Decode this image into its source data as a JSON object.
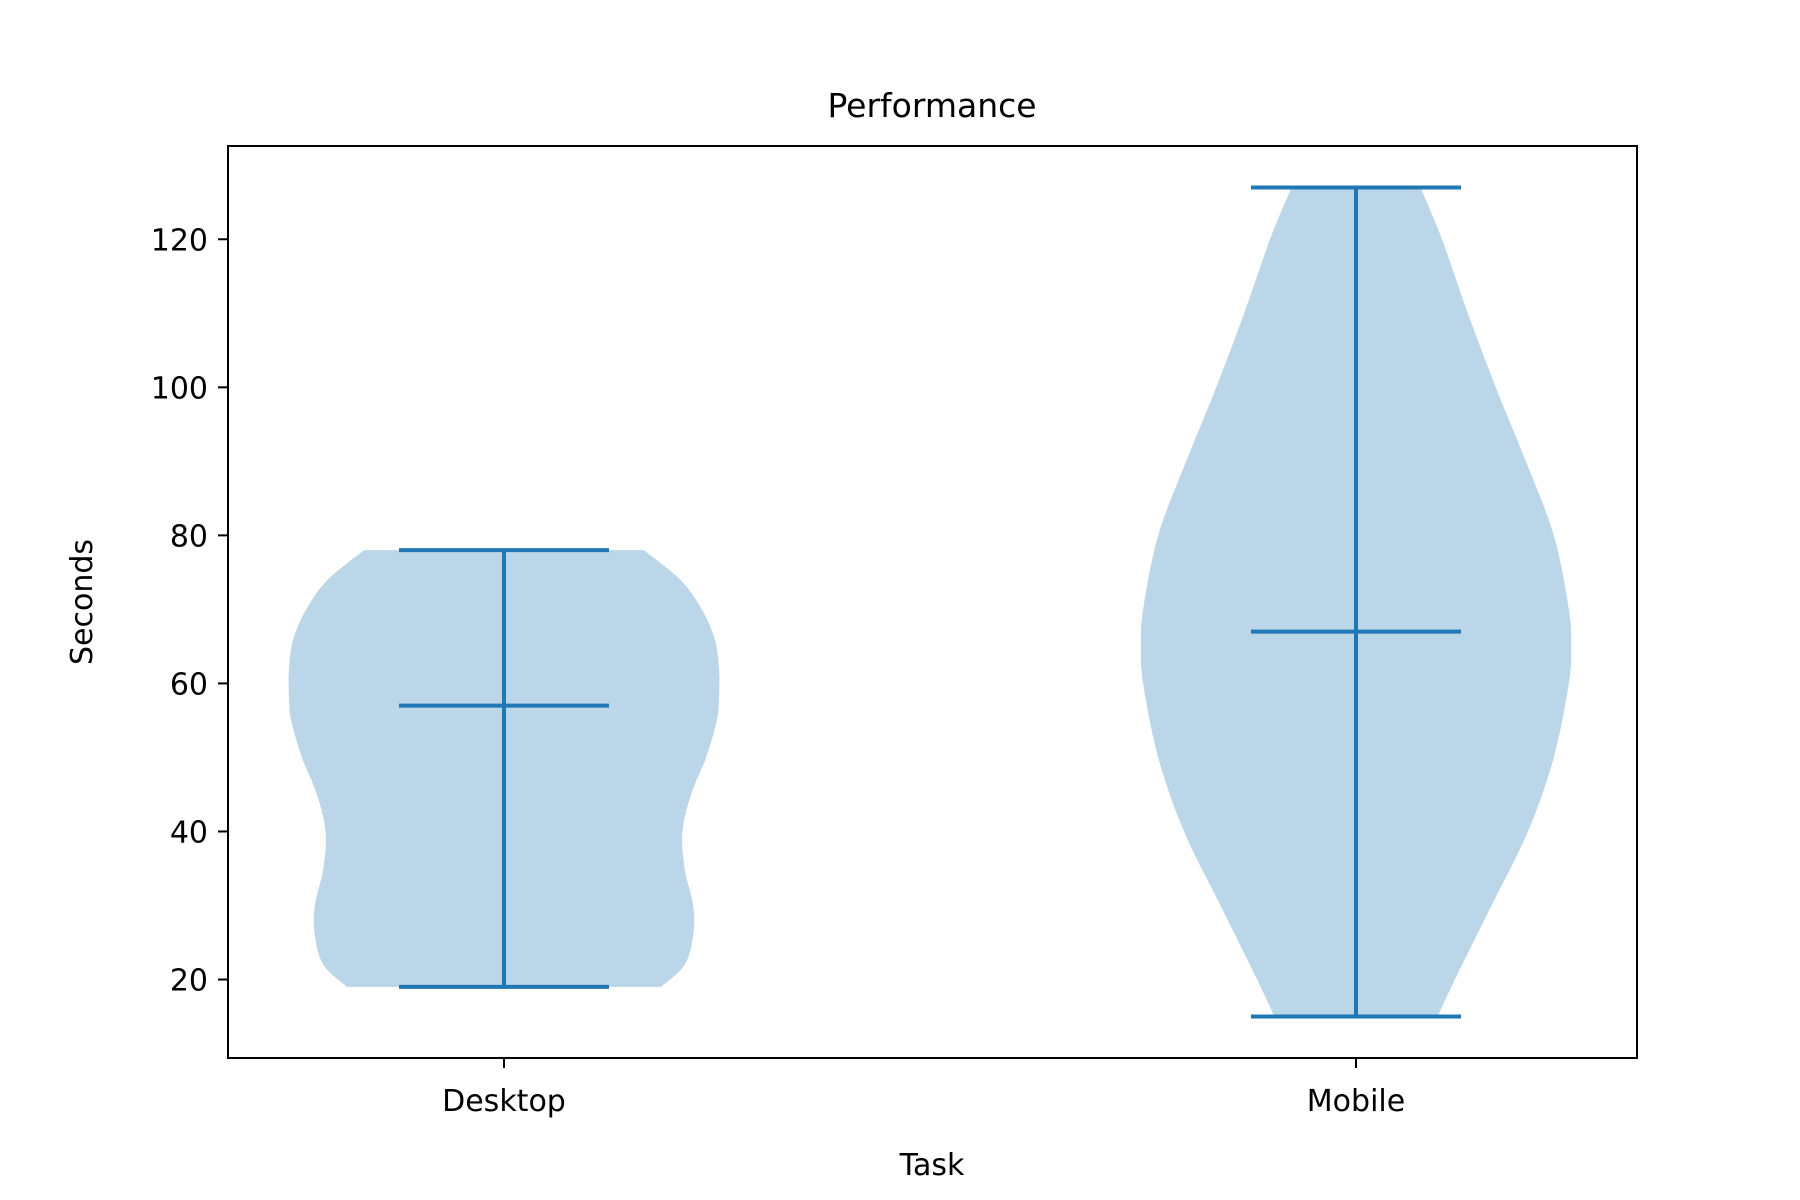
{
  "chart_data": {
    "type": "violin",
    "title": "Performance",
    "xlabel": "Task",
    "ylabel": "Seconds",
    "categories": [
      "Desktop",
      "Mobile"
    ],
    "ylim": [
      9.4,
      132.6
    ],
    "yticks": [
      20,
      40,
      60,
      80,
      100,
      120
    ],
    "grid": false,
    "violins": [
      {
        "category": "Desktop",
        "min": 19,
        "median": 57,
        "max": 78,
        "density": [
          [
            19,
            0.73
          ],
          [
            22,
            0.84
          ],
          [
            26,
            0.88
          ],
          [
            30,
            0.88
          ],
          [
            35,
            0.84
          ],
          [
            40,
            0.83
          ],
          [
            45,
            0.87
          ],
          [
            50,
            0.94
          ],
          [
            55,
            0.99
          ],
          [
            58,
            1.0
          ],
          [
            62,
            1.0
          ],
          [
            66,
            0.98
          ],
          [
            70,
            0.92
          ],
          [
            74,
            0.82
          ],
          [
            78,
            0.65
          ]
        ]
      },
      {
        "category": "Mobile",
        "min": 15,
        "median": 67,
        "max": 127,
        "density": [
          [
            15,
            0.38
          ],
          [
            20,
            0.46
          ],
          [
            30,
            0.63
          ],
          [
            40,
            0.8
          ],
          [
            50,
            0.92
          ],
          [
            60,
            0.99
          ],
          [
            65,
            1.0
          ],
          [
            70,
            0.99
          ],
          [
            80,
            0.92
          ],
          [
            90,
            0.79
          ],
          [
            100,
            0.65
          ],
          [
            110,
            0.52
          ],
          [
            120,
            0.4
          ],
          [
            127,
            0.3
          ]
        ]
      }
    ],
    "colors": {
      "body": "#1f77b4",
      "body_opacity": 0.3,
      "lines": "#1f77b4"
    }
  }
}
